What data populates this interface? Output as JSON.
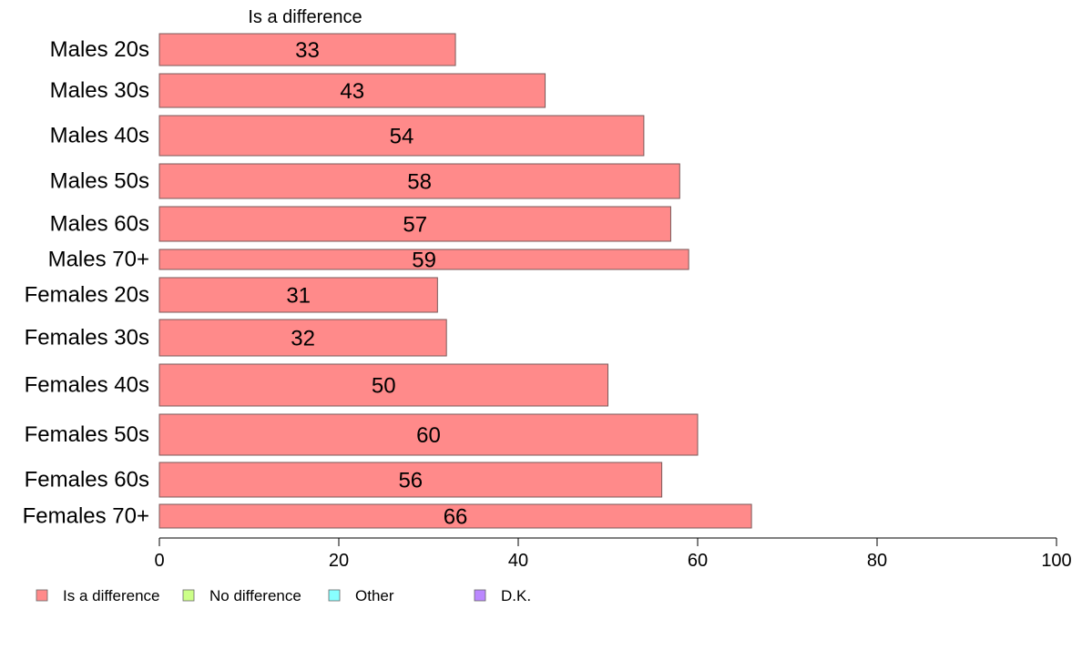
{
  "chart_data": {
    "type": "bar",
    "orientation": "horizontal",
    "stacked": true,
    "categories": [
      "Males 20s",
      "Males 30s",
      "Males 40s",
      "Males 50s",
      "Males 60s",
      "Males 70+",
      "Females 20s",
      "Females 30s",
      "Females 40s",
      "Females 50s",
      "Females 60s",
      "Females 70+"
    ],
    "series": [
      {
        "name": "Is a difference",
        "values": [
          33,
          43,
          54,
          58,
          57,
          59,
          31,
          32,
          50,
          60,
          56,
          66
        ],
        "color": "#ff8a8a",
        "show_labels": true
      }
    ],
    "visible_series_title": "Is a difference",
    "xlim": [
      0,
      100
    ],
    "xticks": [
      0,
      20,
      40,
      60,
      80,
      100
    ],
    "grid": false,
    "legend": {
      "placement": "bottom-left",
      "items": [
        {
          "label": "Is a difference",
          "color": "#ff8a8a"
        },
        {
          "label": "No difference",
          "color": "#ccff88"
        },
        {
          "label": "Other",
          "color": "#88ffff"
        },
        {
          "label": "D.K.",
          "color": "#bb88ff"
        }
      ]
    }
  }
}
